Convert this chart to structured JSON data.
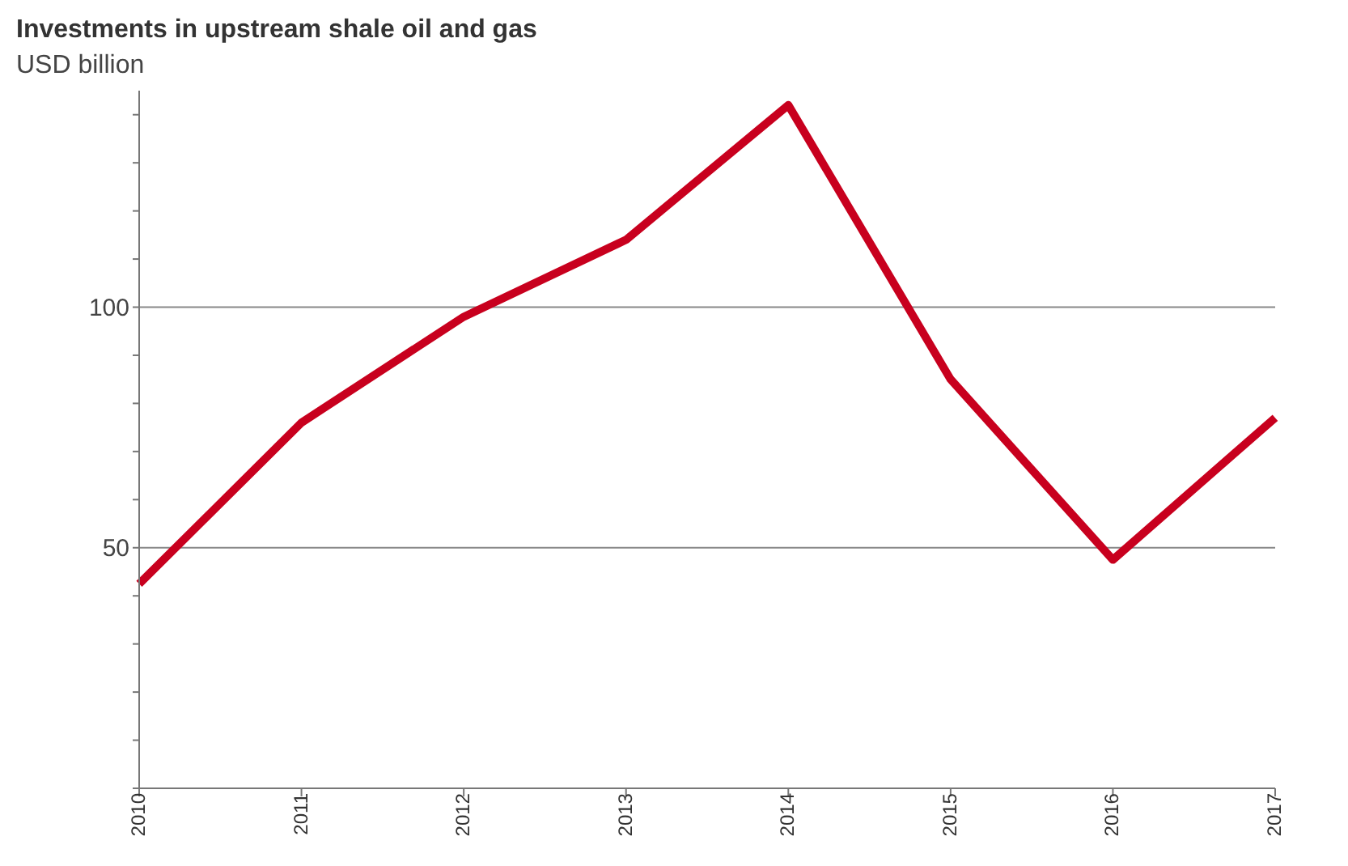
{
  "chart_data": {
    "type": "line",
    "title": "Investments in upstream shale oil and gas",
    "ylabel": "USD billion",
    "categories": [
      "2010",
      "2011",
      "2012",
      "2013",
      "2014",
      "2015",
      "2016",
      "2017"
    ],
    "series": [
      {
        "color": "#c8001e",
        "values": [
          42.5,
          76,
          98,
          114,
          142,
          85,
          47.5,
          77
        ]
      }
    ],
    "ylim": [
      0,
      145
    ],
    "yticks": [
      {
        "value": 0,
        "label": null
      },
      {
        "value": 10,
        "label": null
      },
      {
        "value": 20,
        "label": null
      },
      {
        "value": 30,
        "label": null
      },
      {
        "value": 40,
        "label": null
      },
      50,
      {
        "value": 60,
        "label": null
      },
      {
        "value": 70,
        "label": null
      },
      {
        "value": 80,
        "label": null
      },
      {
        "value": 90,
        "label": null
      },
      100,
      {
        "value": 110,
        "label": null
      },
      {
        "value": 120,
        "label": null
      },
      {
        "value": 130,
        "label": null
      },
      {
        "value": 140,
        "label": null
      }
    ],
    "grid": "y",
    "marker": "none",
    "line_style": "solid"
  }
}
